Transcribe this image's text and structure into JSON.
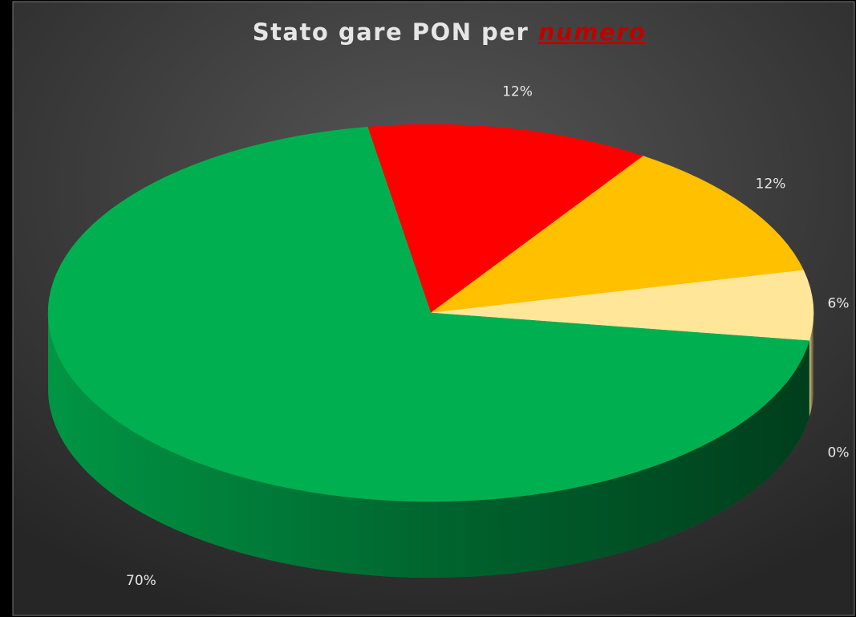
{
  "chart_data": {
    "type": "pie3d",
    "title": "Stato gare PON per",
    "title_emphasis": "numero",
    "values": [
      12,
      12,
      6,
      0,
      70
    ],
    "value_labels": [
      "12%",
      "12%",
      "6%",
      "0%",
      "70%"
    ],
    "colors": [
      "#ff0000",
      "#ffc000",
      "#ffe699",
      "#a5a5a5",
      "#00b050"
    ]
  }
}
